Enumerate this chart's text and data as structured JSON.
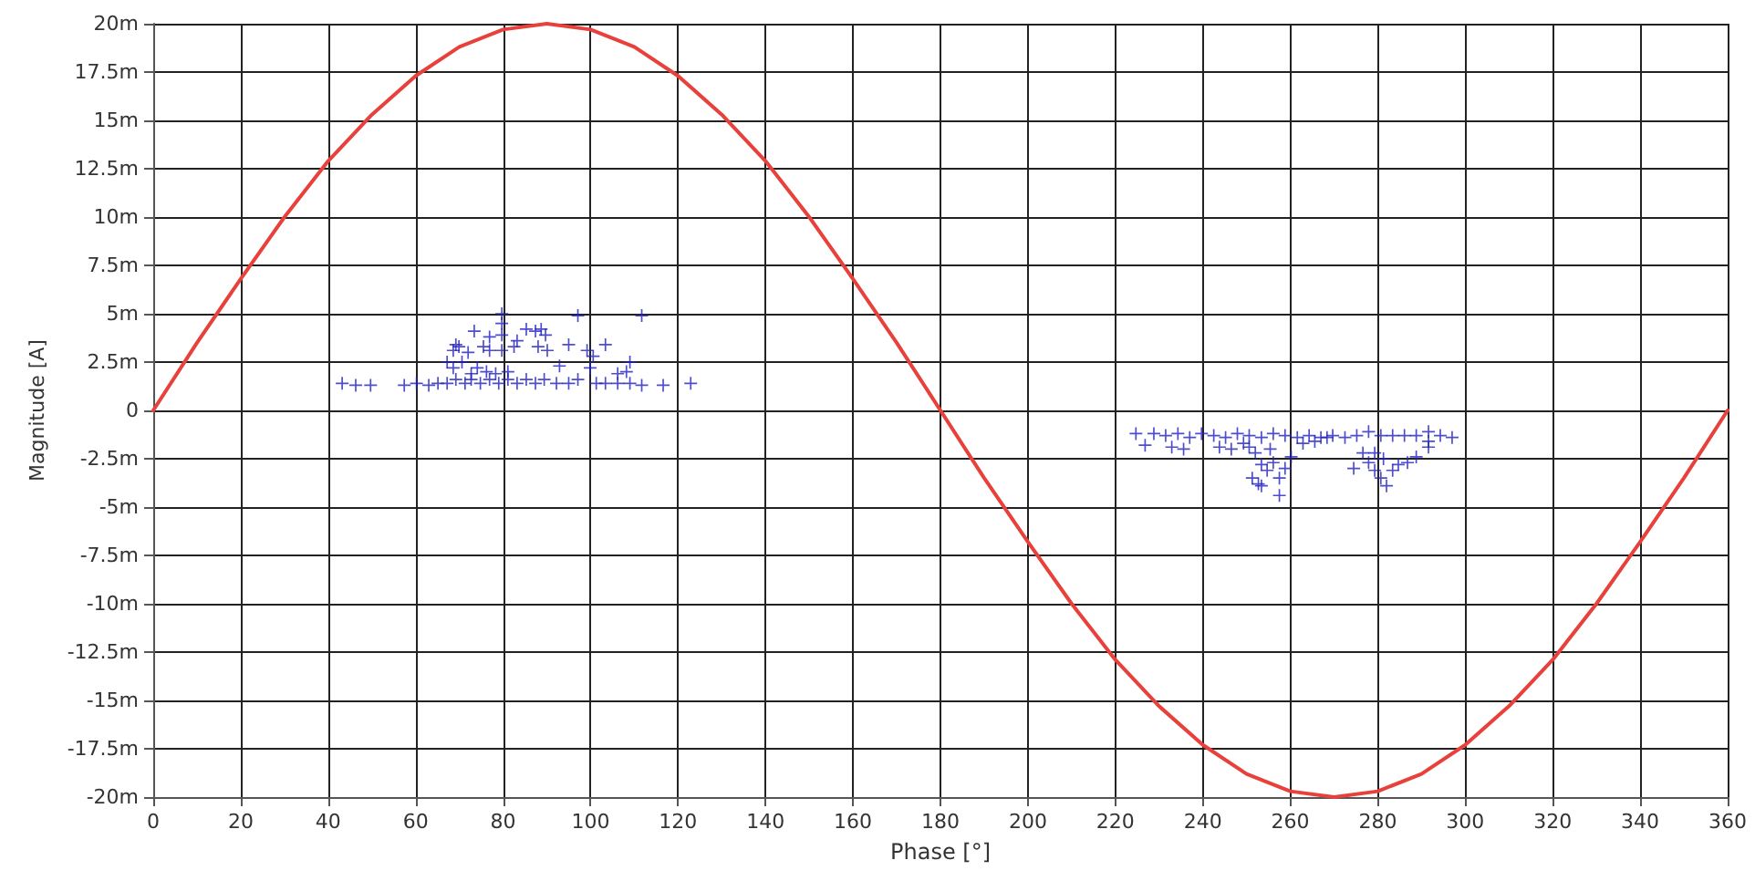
{
  "chart_data": {
    "type": "scatter",
    "xlabel": "Phase [°]",
    "ylabel": "Magnitude [A]",
    "xlim": [
      0,
      360
    ],
    "xticks": [
      0,
      20,
      40,
      60,
      80,
      100,
      120,
      140,
      160,
      180,
      200,
      220,
      240,
      260,
      280,
      300,
      320,
      340,
      360
    ],
    "ylim": [
      -20,
      20
    ],
    "yticks": [
      {
        "value": 20,
        "label": "20m"
      },
      {
        "value": 17.5,
        "label": "17.5m"
      },
      {
        "value": 15,
        "label": "15m"
      },
      {
        "value": 12.5,
        "label": "12.5m"
      },
      {
        "value": 10,
        "label": "10m"
      },
      {
        "value": 7.5,
        "label": "7.5m"
      },
      {
        "value": 5,
        "label": "5m"
      },
      {
        "value": 2.5,
        "label": "2.5m"
      },
      0,
      {
        "value": -2.5,
        "label": "-2.5m"
      },
      {
        "value": -5,
        "label": "-5m"
      },
      {
        "value": -7.5,
        "label": "-7.5m"
      },
      {
        "value": -10,
        "label": "-10m"
      },
      {
        "value": -12.5,
        "label": "-12.5m"
      },
      {
        "value": -15,
        "label": "-15m"
      },
      {
        "value": -17.5,
        "label": "-17.5m"
      },
      {
        "value": -20,
        "label": "-20m"
      }
    ],
    "grid": true,
    "marker": "cross",
    "series": [
      {
        "type": "line",
        "marker": "none",
        "color": "#e8403a",
        "x": [
          0,
          10,
          20,
          30,
          40,
          50,
          60,
          70,
          80,
          90,
          100,
          110,
          120,
          130,
          140,
          150,
          160,
          170,
          180,
          190,
          200,
          210,
          220,
          230,
          240,
          250,
          260,
          270,
          280,
          290,
          300,
          310,
          320,
          330,
          340,
          350,
          360
        ],
        "values": [
          0,
          3.5,
          6.8,
          10,
          12.9,
          15.3,
          17.3,
          18.8,
          19.7,
          20,
          19.7,
          18.8,
          17.3,
          15.3,
          12.9,
          10,
          6.8,
          3.5,
          0,
          -3.5,
          -6.8,
          -10,
          -12.9,
          -15.3,
          -17.3,
          -18.8,
          -19.7,
          -20,
          -19.7,
          -18.8,
          -17.3,
          -15.3,
          -12.9,
          -10,
          -6.8,
          -3.5,
          0
        ]
      },
      {
        "color": "#2020c0",
        "x": [
          43.2,
          46.3,
          49.7,
          57.4,
          60.2,
          63.0,
          65.1,
          67.2,
          69.2,
          71.3,
          72.7,
          74.8,
          76.9,
          79.0,
          81.1,
          83.2,
          85.3,
          87.4,
          89.4,
          92.2,
          95.0,
          97.1,
          101.3,
          103.4,
          106.2,
          109.0,
          111.7,
          116.6,
          122.9,
          68.6,
          70.6,
          72.0,
          72.7,
          74.1,
          76.2,
          78.3,
          81.1,
          69.9,
          69.2,
          73.4,
          75.5,
          76.9,
          79.7,
          82.5,
          83.2,
          85.3,
          87.4,
          88.7,
          89.7,
          88.0,
          90.1,
          92.9,
          95.0,
          99.2,
          100.6,
          103.4,
          99.9,
          106.2,
          109.0,
          108.2,
          76.9,
          79.7,
          68.6,
          67.2,
          79.7,
          97.1,
          111.7,
          79.7
        ],
        "values": [
          1.4,
          1.3,
          1.3,
          1.3,
          1.4,
          1.3,
          1.4,
          1.4,
          1.6,
          1.4,
          1.6,
          1.4,
          1.6,
          1.4,
          1.6,
          1.4,
          1.6,
          1.4,
          1.6,
          1.4,
          1.4,
          1.6,
          1.4,
          1.4,
          1.4,
          1.4,
          1.3,
          1.3,
          1.4,
          2.2,
          2.5,
          3,
          1.9,
          2.2,
          2,
          1.9,
          2,
          3.3,
          3.4,
          4.1,
          3.3,
          3.1,
          3.1,
          3.3,
          3.6,
          4.2,
          4.1,
          4.2,
          3.9,
          3.3,
          3.1,
          2.3,
          3.4,
          3.1,
          2.8,
          3.4,
          2.2,
          1.9,
          2.5,
          2,
          3.8,
          3.9,
          3.1,
          2.5,
          5,
          4.9,
          4.9,
          4.5
        ]
      },
      {
        "color": "#2020c0",
        "x": [
          224.7,
          228.8,
          231.5,
          234.3,
          237.0,
          239.7,
          242.5,
          245.2,
          247.9,
          250.6,
          253.4,
          256.1,
          258.8,
          261.6,
          264.3,
          267.0,
          269.7,
          272.5,
          275.2,
          277.9,
          280.7,
          283.4,
          286.1,
          288.8,
          291.6,
          294.3,
          297.0,
          226.8,
          232.9,
          235.6,
          243.8,
          246.5,
          249.3,
          252.0,
          253.4,
          254.7,
          256.1,
          257.5,
          258.8,
          260.2,
          251.3,
          252.7,
          253.4,
          257.5,
          250.6,
          255.4,
          262.9,
          265.6,
          268.4,
          276.6,
          274.5,
          277.9,
          279.3,
          280.7,
          282.0,
          283.4,
          284.7,
          286.8,
          288.8,
          291.6,
          279.3,
          281.3,
          291.6
        ],
        "values": [
          -1.2,
          -1.2,
          -1.3,
          -1.2,
          -1.4,
          -1.2,
          -1.3,
          -1.4,
          -1.2,
          -1.3,
          -1.4,
          -1.2,
          -1.3,
          -1.4,
          -1.3,
          -1.4,
          -1.3,
          -1.4,
          -1.3,
          -1.1,
          -1.3,
          -1.3,
          -1.3,
          -1.3,
          -1.1,
          -1.3,
          -1.4,
          -1.8,
          -1.9,
          -2,
          -1.9,
          -2,
          -1.7,
          -2.2,
          -2.8,
          -3.1,
          -2.7,
          -3.5,
          -3,
          -2.4,
          -3.5,
          -3.8,
          -3.9,
          -4.4,
          -1.9,
          -2,
          -1.7,
          -1.6,
          -1.4,
          -2.2,
          -3,
          -2.7,
          -3.1,
          -3.5,
          -3.9,
          -3.1,
          -2.8,
          -2.7,
          -2.4,
          -1.9,
          -2.2,
          -2.5,
          -1.6
        ]
      }
    ]
  }
}
